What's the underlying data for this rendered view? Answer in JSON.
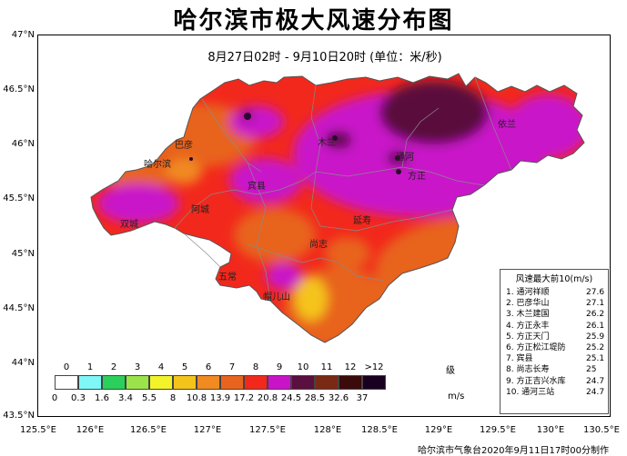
{
  "title": "哈尔滨市极大风速分布图",
  "subtitle": "8月27日02时 - 9月10日20时  (单位：米/秒)",
  "credit": "哈尔滨市气象台2020年9月11日17时00分制作",
  "lat_ticks": [
    "47°N",
    "46.5°N",
    "46°N",
    "45.5°N",
    "45°N",
    "44.5°N",
    "44°N",
    "43.5°N"
  ],
  "lon_ticks": [
    "125.5°E",
    "126°E",
    "126.5°E",
    "127°E",
    "127.5°E",
    "128°E",
    "128.5°E",
    "129°E",
    "129.5°E",
    "130°E",
    "130.5°E"
  ],
  "cities": [
    {
      "name": "巴彦"
    },
    {
      "name": "哈尔滨"
    },
    {
      "name": "宾县"
    },
    {
      "name": "方正"
    },
    {
      "name": "木兰"
    },
    {
      "name": "通河"
    },
    {
      "name": "依兰"
    },
    {
      "name": "阿城"
    },
    {
      "name": "双城"
    },
    {
      "name": "延寿"
    },
    {
      "name": "尚志"
    },
    {
      "name": "五常"
    },
    {
      "name": "帽儿山"
    },
    {
      "name": "延寿"
    }
  ],
  "legend": {
    "title": "风速最大前10(m/s)",
    "rows": [
      {
        "name": "1. 通河祥顺",
        "value": "27.6"
      },
      {
        "name": "2. 巴彦华山",
        "value": "27.1"
      },
      {
        "name": "3. 木兰建国",
        "value": "26.2"
      },
      {
        "name": "4. 方正永丰",
        "value": "26.1"
      },
      {
        "name": "5. 方正天门",
        "value": "25.9"
      },
      {
        "name": "6. 方正松江堤防",
        "value": "25.2"
      },
      {
        "name": "7. 宾县",
        "value": "25.1"
      },
      {
        "name": "8. 尚志长寿",
        "value": "25"
      },
      {
        "name": "9. 方正吉兴水库",
        "value": "24.7"
      },
      {
        "name": "10. 通河三站",
        "value": "24.7"
      }
    ]
  },
  "scale": {
    "levels": [
      "0",
      "1",
      "2",
      "3",
      "4",
      "5",
      "6",
      "7",
      "8",
      "9",
      "10",
      "11",
      "12",
      ">12"
    ],
    "level_unit": "级",
    "bounds": [
      "0",
      "0.3",
      "1.6",
      "3.4",
      "5.5",
      "8",
      "10.8",
      "13.9",
      "17.2",
      "20.8",
      "24.5",
      "28.5",
      "32.6",
      "37"
    ],
    "speed_unit": "m/s",
    "colors": [
      "#ffffff",
      "#7ff7f7",
      "#2bcf5b",
      "#9be34a",
      "#f3f32a",
      "#f5c41b",
      "#f08a21",
      "#e8641e",
      "#f2281c",
      "#c913c9",
      "#5a0f3e",
      "#7a2a14",
      "#3b0a0a",
      "#1a0020"
    ]
  }
}
